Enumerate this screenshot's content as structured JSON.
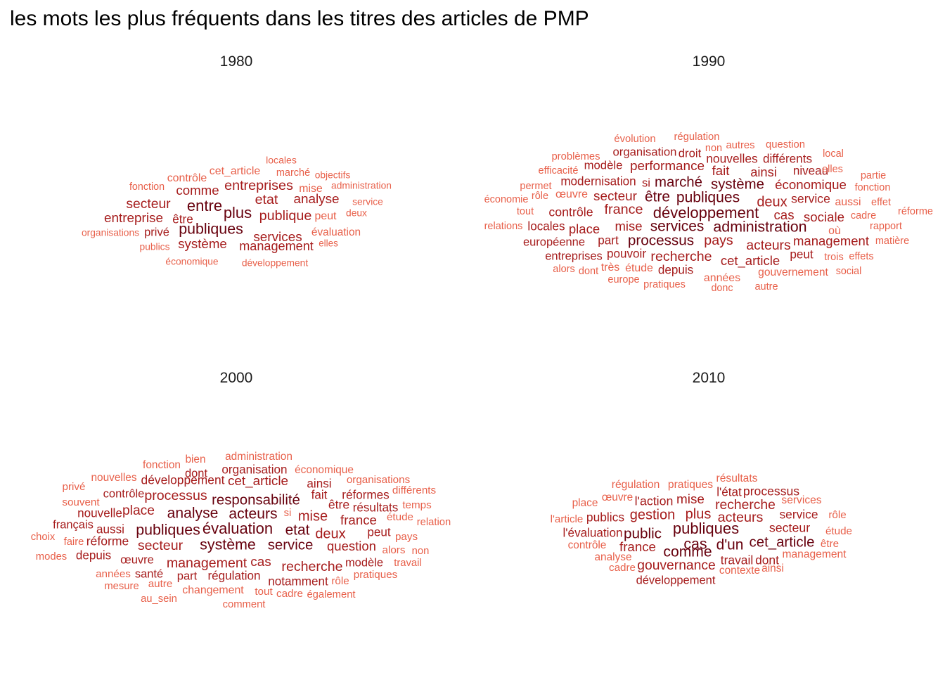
{
  "title": "les mots les plus fréquents dans les titres des articles de PMP",
  "colors": {
    "high": "#67000d",
    "mid": "#a61c1c",
    "low": "#e8604a"
  },
  "chart_data": [
    {
      "type": "wordcloud",
      "panel": "1980",
      "words": [
        {
          "text": "entre",
          "weight": 1.0
        },
        {
          "text": "plus",
          "weight": 1.0
        },
        {
          "text": "publiques",
          "weight": 0.95
        },
        {
          "text": "entreprises",
          "weight": 0.8
        },
        {
          "text": "publique",
          "weight": 0.8
        },
        {
          "text": "etat",
          "weight": 0.78
        },
        {
          "text": "analyse",
          "weight": 0.72
        },
        {
          "text": "secteur",
          "weight": 0.75
        },
        {
          "text": "comme",
          "weight": 0.7
        },
        {
          "text": "entreprise",
          "weight": 0.72
        },
        {
          "text": "services",
          "weight": 0.72
        },
        {
          "text": "système",
          "weight": 0.7
        },
        {
          "text": "management",
          "weight": 0.65
        },
        {
          "text": "être",
          "weight": 0.55
        },
        {
          "text": "privé",
          "weight": 0.5
        },
        {
          "text": "cet_article",
          "weight": 0.45
        },
        {
          "text": "contrôle",
          "weight": 0.45
        },
        {
          "text": "mise",
          "weight": 0.45
        },
        {
          "text": "peut",
          "weight": 0.45
        },
        {
          "text": "évaluation",
          "weight": 0.4
        },
        {
          "text": "fonction",
          "weight": 0.3
        },
        {
          "text": "marché",
          "weight": 0.32
        },
        {
          "text": "locales",
          "weight": 0.28
        },
        {
          "text": "objectifs",
          "weight": 0.25
        },
        {
          "text": "administration",
          "weight": 0.25
        },
        {
          "text": "service",
          "weight": 0.25
        },
        {
          "text": "deux",
          "weight": 0.25
        },
        {
          "text": "organisations",
          "weight": 0.25
        },
        {
          "text": "publics",
          "weight": 0.25
        },
        {
          "text": "elles",
          "weight": 0.22
        },
        {
          "text": "économique",
          "weight": 0.25
        },
        {
          "text": "développement",
          "weight": 0.25
        }
      ]
    },
    {
      "type": "wordcloud",
      "panel": "1990",
      "words": [
        {
          "text": "développement",
          "weight": 1.0
        },
        {
          "text": "administration",
          "weight": 0.95
        },
        {
          "text": "publiques",
          "weight": 0.92
        },
        {
          "text": "services",
          "weight": 0.9
        },
        {
          "text": "être",
          "weight": 0.9
        },
        {
          "text": "processus",
          "weight": 0.88
        },
        {
          "text": "système",
          "weight": 0.85
        },
        {
          "text": "marché",
          "weight": 0.85
        },
        {
          "text": "deux",
          "weight": 0.82
        },
        {
          "text": "france",
          "weight": 0.8
        },
        {
          "text": "recherche",
          "weight": 0.78
        },
        {
          "text": "pays",
          "weight": 0.78
        },
        {
          "text": "acteurs",
          "weight": 0.75
        },
        {
          "text": "performance",
          "weight": 0.72
        },
        {
          "text": "secteur",
          "weight": 0.72
        },
        {
          "text": "économique",
          "weight": 0.7
        },
        {
          "text": "sociale",
          "weight": 0.7
        },
        {
          "text": "cas",
          "weight": 0.7
        },
        {
          "text": "management",
          "weight": 0.68
        },
        {
          "text": "cet_article",
          "weight": 0.68
        },
        {
          "text": "mise",
          "weight": 0.68
        },
        {
          "text": "place",
          "weight": 0.68
        },
        {
          "text": "fait",
          "weight": 0.68
        },
        {
          "text": "ainsi",
          "weight": 0.66
        },
        {
          "text": "contrôle",
          "weight": 0.62
        },
        {
          "text": "service",
          "weight": 0.6
        },
        {
          "text": "nouvelles",
          "weight": 0.58
        },
        {
          "text": "modernisation",
          "weight": 0.55
        },
        {
          "text": "différents",
          "weight": 0.55
        },
        {
          "text": "niveau",
          "weight": 0.55
        },
        {
          "text": "organisation",
          "weight": 0.52
        },
        {
          "text": "droit",
          "weight": 0.52
        },
        {
          "text": "modèle",
          "weight": 0.52
        },
        {
          "text": "locales",
          "weight": 0.55
        },
        {
          "text": "part",
          "weight": 0.55
        },
        {
          "text": "pouvoir",
          "weight": 0.55
        },
        {
          "text": "depuis",
          "weight": 0.55
        },
        {
          "text": "peut",
          "weight": 0.55
        },
        {
          "text": "entreprises",
          "weight": 0.5
        },
        {
          "text": "européenne",
          "weight": 0.5
        },
        {
          "text": "si",
          "weight": 0.5
        },
        {
          "text": "œuvre",
          "weight": 0.45
        },
        {
          "text": "aussi",
          "weight": 0.45
        },
        {
          "text": "où",
          "weight": 0.45
        },
        {
          "text": "très",
          "weight": 0.45
        },
        {
          "text": "étude",
          "weight": 0.45
        },
        {
          "text": "années",
          "weight": 0.45
        },
        {
          "text": "gouvernement",
          "weight": 0.42
        },
        {
          "text": "évolution",
          "weight": 0.35
        },
        {
          "text": "régulation",
          "weight": 0.35
        },
        {
          "text": "autres",
          "weight": 0.35
        },
        {
          "text": "question",
          "weight": 0.35
        },
        {
          "text": "non",
          "weight": 0.32
        },
        {
          "text": "problèmes",
          "weight": 0.35
        },
        {
          "text": "local",
          "weight": 0.32
        },
        {
          "text": "efficacité",
          "weight": 0.32
        },
        {
          "text": "elles",
          "weight": 0.32
        },
        {
          "text": "partie",
          "weight": 0.32
        },
        {
          "text": "permet",
          "weight": 0.32
        },
        {
          "text": "rôle",
          "weight": 0.32
        },
        {
          "text": "fonction",
          "weight": 0.32
        },
        {
          "text": "économie",
          "weight": 0.32
        },
        {
          "text": "effet",
          "weight": 0.32
        },
        {
          "text": "tout",
          "weight": 0.32
        },
        {
          "text": "cadre",
          "weight": 0.32
        },
        {
          "text": "réforme",
          "weight": 0.32
        },
        {
          "text": "relations",
          "weight": 0.32
        },
        {
          "text": "rapport",
          "weight": 0.32
        },
        {
          "text": "matière",
          "weight": 0.32
        },
        {
          "text": "trois",
          "weight": 0.32
        },
        {
          "text": "effets",
          "weight": 0.32
        },
        {
          "text": "alors",
          "weight": 0.32
        },
        {
          "text": "dont",
          "weight": 0.32
        },
        {
          "text": "social",
          "weight": 0.3
        },
        {
          "text": "europe",
          "weight": 0.32
        },
        {
          "text": "pratiques",
          "weight": 0.32
        },
        {
          "text": "donc",
          "weight": 0.3
        },
        {
          "text": "autre",
          "weight": 0.32
        }
      ]
    },
    {
      "type": "wordcloud",
      "panel": "2000",
      "words": [
        {
          "text": "évaluation",
          "weight": 1.0
        },
        {
          "text": "système",
          "weight": 0.95
        },
        {
          "text": "publiques",
          "weight": 0.95
        },
        {
          "text": "analyse",
          "weight": 0.92
        },
        {
          "text": "acteurs",
          "weight": 0.92
        },
        {
          "text": "etat",
          "weight": 0.9
        },
        {
          "text": "responsabilité",
          "weight": 0.85
        },
        {
          "text": "service",
          "weight": 0.85
        },
        {
          "text": "deux",
          "weight": 0.82
        },
        {
          "text": "mise",
          "weight": 0.82
        },
        {
          "text": "processus",
          "weight": 0.78
        },
        {
          "text": "secteur",
          "weight": 0.78
        },
        {
          "text": "management",
          "weight": 0.78
        },
        {
          "text": "recherche",
          "weight": 0.78
        },
        {
          "text": "place",
          "weight": 0.75
        },
        {
          "text": "cet_article",
          "weight": 0.72
        },
        {
          "text": "cas",
          "weight": 0.72
        },
        {
          "text": "france",
          "weight": 0.7
        },
        {
          "text": "question",
          "weight": 0.68
        },
        {
          "text": "réforme",
          "weight": 0.6
        },
        {
          "text": "être",
          "weight": 0.6
        },
        {
          "text": "développement",
          "weight": 0.58
        },
        {
          "text": "nouvelle",
          "weight": 0.55
        },
        {
          "text": "organisation",
          "weight": 0.55
        },
        {
          "text": "ainsi",
          "weight": 0.55
        },
        {
          "text": "fait",
          "weight": 0.55
        },
        {
          "text": "réformes",
          "weight": 0.55
        },
        {
          "text": "résultats",
          "weight": 0.55
        },
        {
          "text": "aussi",
          "weight": 0.55
        },
        {
          "text": "depuis",
          "weight": 0.55
        },
        {
          "text": "peut",
          "weight": 0.55
        },
        {
          "text": "régulation",
          "weight": 0.55
        },
        {
          "text": "notamment",
          "weight": 0.55
        },
        {
          "text": "modèle",
          "weight": 0.5
        },
        {
          "text": "santé",
          "weight": 0.5
        },
        {
          "text": "part",
          "weight": 0.5
        },
        {
          "text": "contrôle",
          "weight": 0.5
        },
        {
          "text": "œuvre",
          "weight": 0.5
        },
        {
          "text": "dont",
          "weight": 0.5
        },
        {
          "text": "français",
          "weight": 0.5
        },
        {
          "text": "changement",
          "weight": 0.45
        },
        {
          "text": "administration",
          "weight": 0.4
        },
        {
          "text": "bien",
          "weight": 0.4
        },
        {
          "text": "fonction",
          "weight": 0.4
        },
        {
          "text": "économique",
          "weight": 0.4
        },
        {
          "text": "nouvelles",
          "weight": 0.4
        },
        {
          "text": "organisations",
          "weight": 0.38
        },
        {
          "text": "privé",
          "weight": 0.38
        },
        {
          "text": "différents",
          "weight": 0.38
        },
        {
          "text": "souvent",
          "weight": 0.38
        },
        {
          "text": "si",
          "weight": 0.35
        },
        {
          "text": "temps",
          "weight": 0.38
        },
        {
          "text": "étude",
          "weight": 0.38
        },
        {
          "text": "relation",
          "weight": 0.35
        },
        {
          "text": "choix",
          "weight": 0.35
        },
        {
          "text": "faire",
          "weight": 0.35
        },
        {
          "text": "pays",
          "weight": 0.38
        },
        {
          "text": "alors",
          "weight": 0.38
        },
        {
          "text": "non",
          "weight": 0.35
        },
        {
          "text": "modes",
          "weight": 0.35
        },
        {
          "text": "travail",
          "weight": 0.35
        },
        {
          "text": "années",
          "weight": 0.38
        },
        {
          "text": "mesure",
          "weight": 0.35
        },
        {
          "text": "autre",
          "weight": 0.38
        },
        {
          "text": "rôle",
          "weight": 0.38
        },
        {
          "text": "pratiques",
          "weight": 0.38
        },
        {
          "text": "au_sein",
          "weight": 0.35
        },
        {
          "text": "tout",
          "weight": 0.38
        },
        {
          "text": "cadre",
          "weight": 0.38
        },
        {
          "text": "également",
          "weight": 0.35
        },
        {
          "text": "comment",
          "weight": 0.35
        }
      ]
    },
    {
      "type": "wordcloud",
      "panel": "2010",
      "words": [
        {
          "text": "publiques",
          "weight": 1.0
        },
        {
          "text": "cas",
          "weight": 0.95
        },
        {
          "text": "comme",
          "weight": 0.92
        },
        {
          "text": "d'un",
          "weight": 0.9
        },
        {
          "text": "public",
          "weight": 0.88
        },
        {
          "text": "cet_article",
          "weight": 0.85
        },
        {
          "text": "gestion",
          "weight": 0.82
        },
        {
          "text": "plus",
          "weight": 0.82
        },
        {
          "text": "acteurs",
          "weight": 0.8
        },
        {
          "text": "recherche",
          "weight": 0.75
        },
        {
          "text": "gouvernance",
          "weight": 0.75
        },
        {
          "text": "mise",
          "weight": 0.72
        },
        {
          "text": "france",
          "weight": 0.7
        },
        {
          "text": "l'action",
          "weight": 0.62
        },
        {
          "text": "secteur",
          "weight": 0.62
        },
        {
          "text": "processus",
          "weight": 0.6
        },
        {
          "text": "publics",
          "weight": 0.58
        },
        {
          "text": "travail",
          "weight": 0.58
        },
        {
          "text": "dont",
          "weight": 0.58
        },
        {
          "text": "service",
          "weight": 0.58
        },
        {
          "text": "l'état",
          "weight": 0.55
        },
        {
          "text": "l'évaluation",
          "weight": 0.55
        },
        {
          "text": "développement",
          "weight": 0.5
        },
        {
          "text": "résultats",
          "weight": 0.42
        },
        {
          "text": "régulation",
          "weight": 0.42
        },
        {
          "text": "pratiques",
          "weight": 0.42
        },
        {
          "text": "services",
          "weight": 0.42
        },
        {
          "text": "œuvre",
          "weight": 0.4
        },
        {
          "text": "place",
          "weight": 0.4
        },
        {
          "text": "l'article",
          "weight": 0.38
        },
        {
          "text": "rôle",
          "weight": 0.38
        },
        {
          "text": "étude",
          "weight": 0.38
        },
        {
          "text": "contrôle",
          "weight": 0.4
        },
        {
          "text": "être",
          "weight": 0.38
        },
        {
          "text": "analyse",
          "weight": 0.4
        },
        {
          "text": "management",
          "weight": 0.42
        },
        {
          "text": "cadre",
          "weight": 0.38
        },
        {
          "text": "contexte",
          "weight": 0.4
        },
        {
          "text": "ainsi",
          "weight": 0.4
        }
      ]
    }
  ]
}
